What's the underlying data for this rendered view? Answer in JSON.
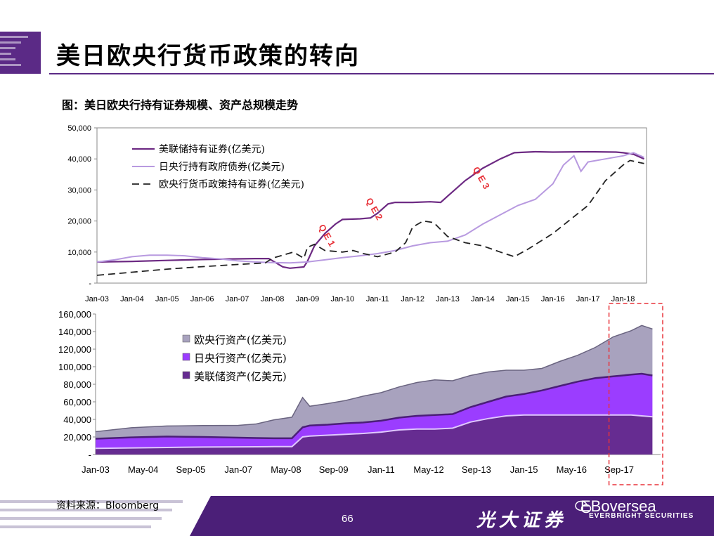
{
  "page": {
    "title": "美日欧央行货币政策的转向",
    "subtitle": "图：美日欧央行持有证券规模、资产总规模走势",
    "source": "资料来源：Bloomberg",
    "page_number": "66",
    "brand_cn": "光大证券",
    "brand_wechat": "EBoversea",
    "brand_en": "EVERBRIGHT SECURITIES"
  },
  "colors": {
    "purple_dark": "#6d2a83",
    "purple_light": "#b89ae0",
    "black": "#222222",
    "ecb_area": "#a8a2be",
    "boj_area": "#9b3dff",
    "fed_area": "#662c91",
    "highlight": "#e8333a",
    "brand_band": "#4b1f78"
  },
  "chart_data": [
    {
      "type": "line",
      "title": "",
      "xlabel": "",
      "ylabel": "",
      "ylim": [
        0,
        50000
      ],
      "yticks": [
        "-",
        "10,000",
        "20,000",
        "30,000",
        "40,000",
        "50,000"
      ],
      "xticks": [
        "Jan-03",
        "Jan-04",
        "Jan-05",
        "Jan-06",
        "Jan-07",
        "Jan-08",
        "Jan-09",
        "Jan-10",
        "Jan-11",
        "Jan-12",
        "Jan-13",
        "Jan-14",
        "Jan-15",
        "Jan-16",
        "Jan-17",
        "Jan-18"
      ],
      "xrange": [
        2003.0,
        2018.67
      ],
      "grid": false,
      "legend": "top-left",
      "annotations": [
        {
          "text": "QE1",
          "x": 2009.5,
          "y": 14500
        },
        {
          "text": "QE2",
          "x": 2010.85,
          "y": 23000
        },
        {
          "text": "QE3",
          "x": 2013.9,
          "y": 33000
        }
      ],
      "series": [
        {
          "name": "美联储持有证券(亿美元)",
          "style": "solid-dark",
          "x": [
            2003.0,
            2004.0,
            2005.0,
            2006.0,
            2007.0,
            2007.5,
            2007.9,
            2008.3,
            2008.5,
            2008.9,
            2009.0,
            2009.2,
            2009.5,
            2009.8,
            2010.0,
            2010.5,
            2010.8,
            2011.0,
            2011.3,
            2011.5,
            2012.0,
            2012.5,
            2012.8,
            2013.0,
            2013.5,
            2014.0,
            2014.5,
            2014.9,
            2015.5,
            2016.0,
            2017.0,
            2017.8,
            2018.0,
            2018.3,
            2018.6
          ],
          "y": [
            6800,
            7000,
            7300,
            7600,
            7800,
            7900,
            7900,
            5200,
            4800,
            5200,
            7000,
            12000,
            16000,
            19000,
            20500,
            20700,
            21000,
            22500,
            25500,
            26000,
            26000,
            26200,
            26000,
            28000,
            33000,
            37000,
            40000,
            42000,
            42300,
            42200,
            42300,
            42200,
            42000,
            41500,
            40000
          ]
        },
        {
          "name": "日央行持有政府债券(亿美元)",
          "style": "solid-light",
          "x": [
            2003.0,
            2003.5,
            2004.0,
            2004.5,
            2005.0,
            2005.5,
            2006.0,
            2006.5,
            2007.0,
            2007.5,
            2008.0,
            2008.5,
            2009.0,
            2009.5,
            2010.0,
            2010.5,
            2011.0,
            2011.5,
            2012.0,
            2012.5,
            2013.0,
            2013.5,
            2014.0,
            2014.5,
            2015.0,
            2015.5,
            2016.0,
            2016.3,
            2016.6,
            2016.8,
            2017.0,
            2017.5,
            2018.0,
            2018.3,
            2018.6
          ],
          "y": [
            6800,
            7500,
            8500,
            9000,
            9000,
            8800,
            8200,
            7800,
            7200,
            6800,
            6600,
            6500,
            6800,
            7500,
            8200,
            8800,
            9500,
            10500,
            12000,
            13000,
            13500,
            15500,
            19000,
            22000,
            25000,
            27000,
            32000,
            38000,
            41000,
            36000,
            39000,
            40000,
            41000,
            42000,
            40500
          ]
        },
        {
          "name": "欧央行货币政策持有证券(亿美元)",
          "style": "dashed",
          "x": [
            2003.0,
            2004.0,
            2005.0,
            2006.0,
            2007.0,
            2007.8,
            2008.0,
            2008.6,
            2008.9,
            2009.0,
            2009.2,
            2009.5,
            2010.0,
            2010.3,
            2010.6,
            2011.0,
            2011.5,
            2011.8,
            2012.0,
            2012.3,
            2012.6,
            2013.0,
            2013.5,
            2014.0,
            2014.5,
            2014.9,
            2015.3,
            2016.0,
            2017.0,
            2017.5,
            2018.0,
            2018.2,
            2018.6
          ],
          "y": [
            2500,
            3500,
            4500,
            5300,
            6000,
            6500,
            8000,
            10000,
            8000,
            11500,
            12500,
            10500,
            10000,
            10500,
            9500,
            8500,
            10000,
            13000,
            18000,
            20000,
            19500,
            15000,
            13000,
            12000,
            10000,
            8500,
            11000,
            16000,
            25000,
            33000,
            38000,
            39500,
            38500
          ]
        }
      ]
    },
    {
      "type": "area",
      "title": "",
      "xlabel": "",
      "ylabel": "",
      "stacked": true,
      "ylim": [
        0,
        160000
      ],
      "yticks": [
        "-",
        "20,000",
        "40,000",
        "60,000",
        "80,000",
        "100,000",
        "120,000",
        "140,000",
        "160,000"
      ],
      "xticks": [
        "Jan-03",
        "May-04",
        "Sep-05",
        "Jan-07",
        "May-08",
        "Sep-09",
        "Jan-11",
        "May-12",
        "Sep-13",
        "Jan-15",
        "May-16",
        "Sep-17"
      ],
      "xrange": [
        2003.0,
        2018.67
      ],
      "grid": false,
      "legend": "top-left",
      "highlight_range": [
        2017.5,
        2018.75
      ],
      "x": [
        2003.0,
        2004.0,
        2005.0,
        2006.0,
        2007.0,
        2007.5,
        2008.0,
        2008.5,
        2008.8,
        2009.0,
        2009.5,
        2010.0,
        2010.5,
        2011.0,
        2011.5,
        2012.0,
        2012.5,
        2013.0,
        2013.5,
        2014.0,
        2014.5,
        2015.0,
        2015.5,
        2016.0,
        2016.5,
        2017.0,
        2017.5,
        2018.0,
        2018.3,
        2018.6
      ],
      "series": [
        {
          "name": "美联储资产(亿美元)",
          "values": [
            7000,
            7500,
            8000,
            8500,
            8700,
            8800,
            9000,
            9000,
            20000,
            21000,
            22000,
            23000,
            24000,
            25500,
            28000,
            29000,
            29000,
            30000,
            37000,
            41000,
            44000,
            45000,
            45000,
            45000,
            45000,
            45000,
            45000,
            45000,
            44000,
            43000
          ]
        },
        {
          "name": "日央行资产(亿美元)",
          "values": [
            11000,
            12000,
            12500,
            11500,
            10500,
            10000,
            9500,
            9500,
            11000,
            12000,
            12000,
            12500,
            12500,
            13000,
            14000,
            15000,
            16000,
            16000,
            17000,
            19000,
            22000,
            24000,
            28000,
            33000,
            38000,
            42000,
            44000,
            46000,
            48000,
            47000
          ]
        },
        {
          "name": "欧央行资产(亿美元)",
          "values": [
            8000,
            11000,
            12000,
            13000,
            14000,
            16000,
            21000,
            24000,
            34000,
            22000,
            24000,
            26000,
            30000,
            32000,
            35000,
            38000,
            40000,
            38000,
            36000,
            34000,
            30000,
            27000,
            25000,
            28000,
            30000,
            35000,
            45000,
            50000,
            55000,
            53000
          ]
        }
      ]
    }
  ]
}
